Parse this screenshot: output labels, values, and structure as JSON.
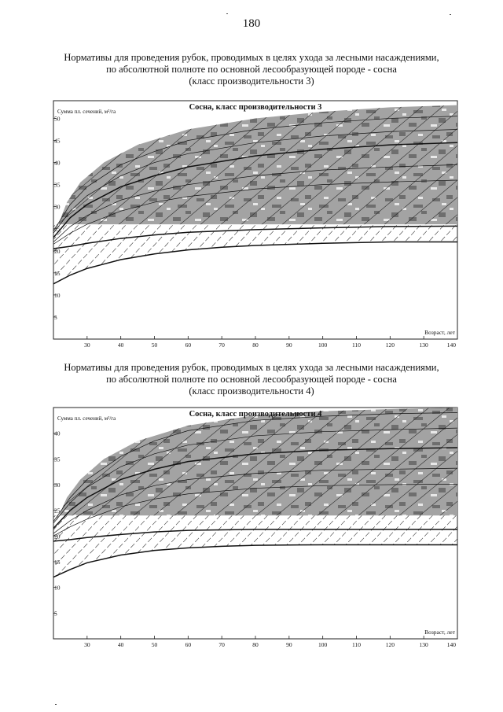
{
  "page": {
    "number": "180"
  },
  "sections": [
    {
      "heading_lines": [
        "Нормативы для проведения рубок, проводимых в целях ухода за лесными насаждениями,",
        "по абсолютной полноте по основной лесообразующей породе - сосна",
        "(класс производительности 3)"
      ]
    },
    {
      "heading_lines": [
        "Нормативы для проведения рубок, проводимых в целях ухода за лесными насаждениями,",
        "по абсолютной полноте по основной лесообразующей породе - сосна",
        "(класс производительности 4)"
      ]
    }
  ],
  "chart_data": [
    {
      "type": "line",
      "title": "Сосна, класс производительности 3",
      "ylabel": "Сумма пл. сечений, м²/га",
      "xlabel": "Возраст, лет",
      "xlim": [
        20,
        140
      ],
      "ylim": [
        0,
        54
      ],
      "x_ticks": [
        30,
        40,
        50,
        60,
        70,
        80,
        90,
        100,
        110,
        120,
        130,
        140
      ],
      "y_ticks": [
        5,
        10,
        15,
        20,
        25,
        30,
        35,
        40,
        45,
        50
      ],
      "band": {
        "name": "shaded zone",
        "lower": 26,
        "upper": [
          {
            "x": 21,
            "y": 25
          },
          {
            "x": 24,
            "y": 31
          },
          {
            "x": 28,
            "y": 35.5
          },
          {
            "x": 35,
            "y": 40
          },
          {
            "x": 45,
            "y": 44
          },
          {
            "x": 60,
            "y": 47.5
          },
          {
            "x": 80,
            "y": 50
          },
          {
            "x": 100,
            "y": 51.5
          },
          {
            "x": 120,
            "y": 52.5
          },
          {
            "x": 140,
            "y": 53
          }
        ]
      },
      "hatched_zone": {
        "lower_curve": "lower",
        "upper": 26
      },
      "series": [
        {
          "role": "lower",
          "label": "",
          "points": [
            {
              "x": 20,
              "y": 12.5
            },
            {
              "x": 25,
              "y": 14.5
            },
            {
              "x": 30,
              "y": 16
            },
            {
              "x": 40,
              "y": 18
            },
            {
              "x": 50,
              "y": 19.3
            },
            {
              "x": 60,
              "y": 20.2
            },
            {
              "x": 70,
              "y": 20.8
            },
            {
              "x": 80,
              "y": 21.2
            },
            {
              "x": 100,
              "y": 21.7
            },
            {
              "x": 120,
              "y": 22
            },
            {
              "x": 140,
              "y": 22
            }
          ]
        },
        {
          "role": "M",
          "label": "М",
          "points": [
            {
              "x": 20,
              "y": 20.5
            },
            {
              "x": 25,
              "y": 21
            },
            {
              "x": 30,
              "y": 21.7
            },
            {
              "x": 40,
              "y": 22.8
            },
            {
              "x": 50,
              "y": 23.6
            },
            {
              "x": 60,
              "y": 24.2
            },
            {
              "x": 80,
              "y": 24.8
            },
            {
              "x": 100,
              "y": 25.2
            },
            {
              "x": 120,
              "y": 25.5
            },
            {
              "x": 140,
              "y": 25.6
            }
          ]
        },
        {
          "role": "bold",
          "label": "",
          "points": [
            {
              "x": 20,
              "y": 23
            },
            {
              "x": 25,
              "y": 27.5
            },
            {
              "x": 30,
              "y": 30.5
            },
            {
              "x": 40,
              "y": 34.5
            },
            {
              "x": 50,
              "y": 37
            },
            {
              "x": 60,
              "y": 39
            },
            {
              "x": 80,
              "y": 41.5
            },
            {
              "x": 100,
              "y": 43
            },
            {
              "x": 120,
              "y": 44
            },
            {
              "x": 140,
              "y": 44.5
            }
          ]
        },
        {
          "role": "guide",
          "label": "",
          "points": [
            {
              "x": 20,
              "y": 22
            },
            {
              "x": 25,
              "y": 25.5
            },
            {
              "x": 30,
              "y": 28
            },
            {
              "x": 40,
              "y": 31.5
            },
            {
              "x": 50,
              "y": 33.5
            },
            {
              "x": 60,
              "y": 35
            },
            {
              "x": 80,
              "y": 37
            },
            {
              "x": 100,
              "y": 38.3
            },
            {
              "x": 120,
              "y": 39
            },
            {
              "x": 140,
              "y": 39.5
            }
          ]
        },
        {
          "role": "guide",
          "label": "",
          "points": [
            {
              "x": 20,
              "y": 21.5
            },
            {
              "x": 25,
              "y": 24
            },
            {
              "x": 30,
              "y": 26
            },
            {
              "x": 40,
              "y": 29
            },
            {
              "x": 50,
              "y": 31
            },
            {
              "x": 60,
              "y": 32.3
            },
            {
              "x": 80,
              "y": 34
            },
            {
              "x": 100,
              "y": 35
            },
            {
              "x": 120,
              "y": 35.6
            },
            {
              "x": 140,
              "y": 36
            }
          ]
        },
        {
          "role": "guide",
          "label": "",
          "points": [
            {
              "x": 20,
              "y": 24
            },
            {
              "x": 25,
              "y": 29
            },
            {
              "x": 30,
              "y": 32.5
            },
            {
              "x": 40,
              "y": 37
            },
            {
              "x": 50,
              "y": 40
            },
            {
              "x": 60,
              "y": 42
            },
            {
              "x": 80,
              "y": 44.5
            },
            {
              "x": 100,
              "y": 46
            },
            {
              "x": 120,
              "y": 47
            },
            {
              "x": 140,
              "y": 47.5
            }
          ]
        },
        {
          "role": "guide",
          "label": "",
          "points": [
            {
              "x": 20,
              "y": 24.5
            },
            {
              "x": 25,
              "y": 30.5
            },
            {
              "x": 30,
              "y": 34.5
            },
            {
              "x": 40,
              "y": 39.5
            },
            {
              "x": 50,
              "y": 42.5
            },
            {
              "x": 60,
              "y": 45
            },
            {
              "x": 80,
              "y": 47.5
            },
            {
              "x": 100,
              "y": 49
            },
            {
              "x": 120,
              "y": 50
            },
            {
              "x": 140,
              "y": 50.5
            }
          ]
        }
      ],
      "grid": false
    },
    {
      "type": "line",
      "title": "Сосна, класс производительности 4",
      "ylabel": "Сумма пл. сечений, м²/га",
      "xlabel": "Возраст, лет",
      "xlim": [
        20,
        140
      ],
      "ylim": [
        0,
        45
      ],
      "x_ticks": [
        30,
        40,
        50,
        60,
        70,
        80,
        90,
        100,
        110,
        120,
        130,
        140
      ],
      "y_ticks": [
        5,
        10,
        15,
        20,
        25,
        30,
        35,
        40
      ],
      "band": {
        "name": "shaded zone",
        "lower": 24,
        "upper": [
          {
            "x": 21,
            "y": 23
          },
          {
            "x": 24,
            "y": 27.5
          },
          {
            "x": 28,
            "y": 31
          },
          {
            "x": 35,
            "y": 35
          },
          {
            "x": 45,
            "y": 38.5
          },
          {
            "x": 60,
            "y": 41.5
          },
          {
            "x": 80,
            "y": 43.5
          },
          {
            "x": 100,
            "y": 44.3
          },
          {
            "x": 120,
            "y": 44.7
          },
          {
            "x": 140,
            "y": 45
          }
        ]
      },
      "hatched_zone": {
        "lower_curve": "lower",
        "upper": 24
      },
      "series": [
        {
          "role": "lower",
          "label": "",
          "points": [
            {
              "x": 20,
              "y": 12
            },
            {
              "x": 25,
              "y": 13.5
            },
            {
              "x": 30,
              "y": 14.8
            },
            {
              "x": 40,
              "y": 16.3
            },
            {
              "x": 50,
              "y": 17.2
            },
            {
              "x": 60,
              "y": 17.7
            },
            {
              "x": 70,
              "y": 18
            },
            {
              "x": 80,
              "y": 18.2
            },
            {
              "x": 100,
              "y": 18.3
            },
            {
              "x": 120,
              "y": 18.3
            },
            {
              "x": 140,
              "y": 18.3
            }
          ]
        },
        {
          "role": "M",
          "label": "М",
          "points": [
            {
              "x": 20,
              "y": 19
            },
            {
              "x": 25,
              "y": 19.3
            },
            {
              "x": 30,
              "y": 19.7
            },
            {
              "x": 40,
              "y": 20.3
            },
            {
              "x": 50,
              "y": 20.8
            },
            {
              "x": 60,
              "y": 21.1
            },
            {
              "x": 80,
              "y": 21.3
            },
            {
              "x": 100,
              "y": 21.3
            },
            {
              "x": 120,
              "y": 21.3
            },
            {
              "x": 140,
              "y": 21.3
            }
          ]
        },
        {
          "role": "bold",
          "label": "",
          "points": [
            {
              "x": 20,
              "y": 21.5
            },
            {
              "x": 25,
              "y": 25
            },
            {
              "x": 30,
              "y": 27.5
            },
            {
              "x": 40,
              "y": 31
            },
            {
              "x": 50,
              "y": 33
            },
            {
              "x": 60,
              "y": 34.5
            },
            {
              "x": 80,
              "y": 36
            },
            {
              "x": 100,
              "y": 36.7
            },
            {
              "x": 120,
              "y": 37
            },
            {
              "x": 140,
              "y": 37.2
            }
          ]
        },
        {
          "role": "guide",
          "label": "",
          "points": [
            {
              "x": 20,
              "y": 20.5
            },
            {
              "x": 25,
              "y": 23
            },
            {
              "x": 30,
              "y": 25
            },
            {
              "x": 40,
              "y": 28
            },
            {
              "x": 50,
              "y": 29.8
            },
            {
              "x": 60,
              "y": 31
            },
            {
              "x": 80,
              "y": 32.2
            },
            {
              "x": 100,
              "y": 32.8
            },
            {
              "x": 120,
              "y": 33
            },
            {
              "x": 140,
              "y": 33.2
            }
          ]
        },
        {
          "role": "guide",
          "label": "",
          "points": [
            {
              "x": 20,
              "y": 20
            },
            {
              "x": 25,
              "y": 21.8
            },
            {
              "x": 30,
              "y": 23.3
            },
            {
              "x": 40,
              "y": 25.7
            },
            {
              "x": 50,
              "y": 27.2
            },
            {
              "x": 60,
              "y": 28.2
            },
            {
              "x": 80,
              "y": 29.3
            },
            {
              "x": 100,
              "y": 29.8
            },
            {
              "x": 120,
              "y": 30
            },
            {
              "x": 140,
              "y": 30.1
            }
          ]
        },
        {
          "role": "guide",
          "label": "",
          "points": [
            {
              "x": 20,
              "y": 22.5
            },
            {
              "x": 25,
              "y": 26.5
            },
            {
              "x": 30,
              "y": 29.5
            },
            {
              "x": 40,
              "y": 33.5
            },
            {
              "x": 50,
              "y": 36
            },
            {
              "x": 60,
              "y": 37.7
            },
            {
              "x": 80,
              "y": 39.5
            },
            {
              "x": 100,
              "y": 40.3
            },
            {
              "x": 120,
              "y": 40.7
            },
            {
              "x": 140,
              "y": 41
            }
          ]
        },
        {
          "role": "guide",
          "label": "",
          "points": [
            {
              "x": 20,
              "y": 22.8
            },
            {
              "x": 25,
              "y": 27.5
            },
            {
              "x": 30,
              "y": 31
            },
            {
              "x": 40,
              "y": 35.5
            },
            {
              "x": 50,
              "y": 38.5
            },
            {
              "x": 60,
              "y": 40.5
            },
            {
              "x": 80,
              "y": 42.5
            },
            {
              "x": 100,
              "y": 43.3
            },
            {
              "x": 120,
              "y": 43.8
            },
            {
              "x": 140,
              "y": 44
            }
          ]
        }
      ],
      "grid": false
    }
  ],
  "colors": {
    "band_fill": "#a3a3a3",
    "band_dark": "#6e6e6e",
    "band_light": "#e8e8e8",
    "line": "#111111",
    "hatch": "#333333"
  }
}
